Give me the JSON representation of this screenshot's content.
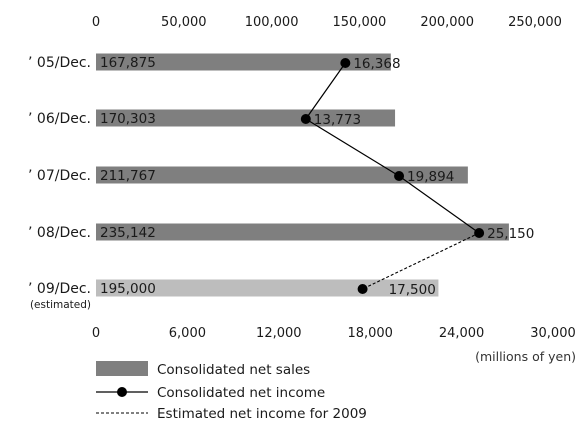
{
  "colors": {
    "sales_bar": "#7f7f7f",
    "estimated_bar": "#bdbdbd",
    "line": "#000000",
    "text": "#1a1a1a"
  },
  "chart_data": {
    "type": "bar",
    "orientation": "horizontal",
    "categories": [
      "’ 05/Dec.",
      "’ 06/Dec.",
      "’ 07/Dec.",
      "’ 08/Dec.",
      "’ 09/Dec."
    ],
    "category_notes": [
      "",
      "",
      "",
      "",
      "(estimated)"
    ],
    "top_axis": {
      "ticks": [
        0,
        50000,
        100000,
        150000,
        200000,
        250000
      ],
      "tick_labels": [
        "0",
        "50,000",
        "100,000",
        "150,000",
        "200,000",
        "250,000"
      ],
      "range": [
        0,
        250000
      ]
    },
    "bottom_axis": {
      "ticks": [
        0,
        6000,
        12000,
        18000,
        24000,
        30000
      ],
      "tick_labels": [
        "0",
        "6,000",
        "12,000",
        "18,000",
        "24,000",
        "30,000"
      ],
      "range": [
        0,
        30000
      ]
    },
    "unit_label": "(millions of yen)",
    "series": [
      {
        "name": "Consolidated net sales",
        "kind": "bar",
        "axis": "top",
        "values": [
          167875,
          170303,
          211767,
          235142,
          195000
        ],
        "labels": [
          "167,875",
          "170,303",
          "211,767",
          "235,142",
          "195,000"
        ],
        "estimated": [
          false,
          false,
          false,
          false,
          true
        ]
      },
      {
        "name": "Consolidated net income",
        "kind": "line",
        "axis": "bottom",
        "values": [
          16368,
          13773,
          19894,
          25150,
          17500
        ],
        "labels": [
          "16,368",
          "13,773",
          "19,894",
          "25,150",
          "17,500"
        ]
      },
      {
        "name": "Estimated net income for 2009",
        "kind": "dashed-line",
        "axis": "bottom",
        "from_index": 3,
        "to_index": 4
      }
    ],
    "legend": [
      {
        "label": "Consolidated net sales",
        "marker": "bar"
      },
      {
        "label": "Consolidated net income",
        "marker": "line-dot"
      },
      {
        "label": "Estimated net income for 2009",
        "marker": "dashed"
      }
    ],
    "legend_position": "bottom-left",
    "grid": false
  }
}
